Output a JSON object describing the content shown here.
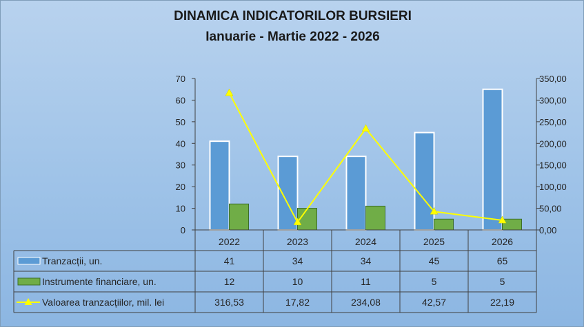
{
  "chart_data": {
    "type": "bar",
    "title": "DINAMICA INDICATORILOR BURSIERI",
    "subtitle": "Ianuarie - Martie 2022 - 2026",
    "categories": [
      "2022",
      "2023",
      "2024",
      "2025",
      "2026"
    ],
    "y_left": {
      "ylim": [
        0,
        70
      ],
      "ticks": [
        "0",
        "10",
        "20",
        "30",
        "40",
        "50",
        "60",
        "70"
      ]
    },
    "y_right": {
      "ylim": [
        0,
        350
      ],
      "ticks": [
        "0,00",
        "50,00",
        "100,00",
        "150,00",
        "200,00",
        "250,00",
        "300,00",
        "350,00"
      ]
    },
    "series": [
      {
        "name": "Tranzacții, un.",
        "type": "bar",
        "axis": "left",
        "color": "#5b9bd5",
        "values": [
          41,
          34,
          34,
          45,
          65
        ],
        "labels": [
          "41",
          "34",
          "34",
          "45",
          "65"
        ]
      },
      {
        "name": "Instrumente financiare, un.",
        "type": "bar",
        "axis": "left",
        "color": "#70ad47",
        "values": [
          12,
          10,
          11,
          5,
          5
        ],
        "labels": [
          "12",
          "10",
          "11",
          "5",
          "5"
        ]
      },
      {
        "name": "Valoarea tranzacțiilor, mil. lei",
        "type": "line",
        "axis": "right",
        "color": "#ffff00",
        "values": [
          316.53,
          17.82,
          234.08,
          42.57,
          22.19
        ],
        "labels": [
          "316,53",
          "17,82",
          "234,08",
          "42,57",
          "22,19"
        ]
      }
    ],
    "legend": "data-table-below",
    "grid": false
  }
}
